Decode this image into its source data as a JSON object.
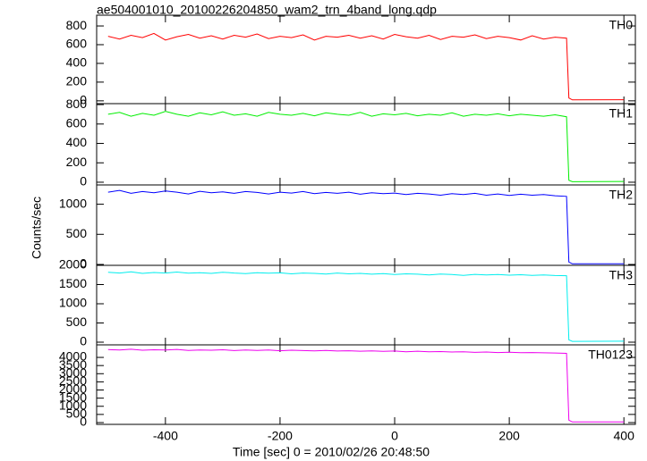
{
  "chart_data": [
    {
      "type": "line",
      "title": "ae504001010_20100226204850_wam2_trn_4band_long.qdp",
      "name": "TH0",
      "color": "#ff0000",
      "x": [
        -500,
        -480,
        -460,
        -440,
        -420,
        -400,
        -380,
        -360,
        -340,
        -320,
        -300,
        -280,
        -260,
        -240,
        -220,
        -200,
        -180,
        -160,
        -140,
        -120,
        -100,
        -80,
        -60,
        -40,
        -20,
        0,
        20,
        40,
        60,
        80,
        100,
        120,
        140,
        160,
        180,
        200,
        220,
        240,
        260,
        280,
        300,
        304,
        310,
        400
      ],
      "values": [
        690,
        660,
        700,
        675,
        720,
        650,
        685,
        710,
        670,
        695,
        660,
        700,
        680,
        715,
        665,
        690,
        675,
        705,
        650,
        690,
        680,
        700,
        670,
        695,
        660,
        710,
        685,
        670,
        700,
        655,
        690,
        680,
        705,
        665,
        690,
        675,
        650,
        695,
        660,
        680,
        670,
        30,
        10,
        12
      ],
      "xlim": [
        -520,
        420
      ],
      "ylim": [
        -30,
        915
      ],
      "yticks": [
        0,
        200,
        400,
        600,
        800
      ]
    },
    {
      "type": "line",
      "name": "TH1",
      "color": "#00ee00",
      "x": [
        -500,
        -480,
        -460,
        -440,
        -420,
        -400,
        -380,
        -360,
        -340,
        -320,
        -300,
        -280,
        -260,
        -240,
        -220,
        -200,
        -180,
        -160,
        -140,
        -120,
        -100,
        -80,
        -60,
        -40,
        -20,
        0,
        20,
        40,
        60,
        80,
        100,
        120,
        140,
        160,
        180,
        200,
        220,
        240,
        260,
        280,
        300,
        304,
        310,
        400
      ],
      "values": [
        700,
        720,
        680,
        710,
        690,
        730,
        700,
        680,
        715,
        695,
        725,
        690,
        705,
        680,
        720,
        700,
        690,
        710,
        685,
        715,
        700,
        690,
        720,
        680,
        705,
        695,
        710,
        685,
        700,
        690,
        715,
        680,
        700,
        690,
        705,
        685,
        700,
        690,
        680,
        695,
        675,
        20,
        5,
        8
      ],
      "xlim": [
        -520,
        420
      ],
      "ylim": [
        -28,
        810
      ],
      "yticks": [
        0,
        200,
        400,
        600,
        800
      ]
    },
    {
      "type": "line",
      "name": "TH2",
      "color": "#0000ff",
      "ylabel": "Counts/sec",
      "x": [
        -500,
        -480,
        -460,
        -440,
        -420,
        -400,
        -380,
        -360,
        -340,
        -320,
        -300,
        -280,
        -260,
        -240,
        -220,
        -200,
        -180,
        -160,
        -140,
        -120,
        -100,
        -80,
        -60,
        -40,
        -20,
        0,
        20,
        40,
        60,
        80,
        100,
        120,
        140,
        160,
        180,
        200,
        220,
        240,
        260,
        280,
        300,
        304,
        310,
        400
      ],
      "values": [
        1200,
        1230,
        1180,
        1210,
        1190,
        1220,
        1200,
        1170,
        1215,
        1190,
        1205,
        1180,
        1210,
        1195,
        1170,
        1200,
        1185,
        1210,
        1175,
        1195,
        1180,
        1200,
        1165,
        1190,
        1175,
        1185,
        1160,
        1180,
        1170,
        1150,
        1175,
        1160,
        1180,
        1150,
        1170,
        1145,
        1165,
        1150,
        1160,
        1140,
        1130,
        40,
        10,
        12
      ],
      "xlim": [
        -520,
        420
      ],
      "ylim": [
        -15,
        1320
      ],
      "yticks": [
        0,
        500,
        1000
      ]
    },
    {
      "type": "line",
      "name": "TH3",
      "color": "#00eeee",
      "x": [
        -500,
        -480,
        -460,
        -440,
        -420,
        -400,
        -380,
        -360,
        -340,
        -320,
        -300,
        -280,
        -260,
        -240,
        -220,
        -200,
        -180,
        -160,
        -140,
        -120,
        -100,
        -80,
        -60,
        -40,
        -20,
        0,
        20,
        40,
        60,
        80,
        100,
        120,
        140,
        160,
        180,
        200,
        220,
        240,
        260,
        280,
        300,
        304,
        310,
        400
      ],
      "values": [
        1820,
        1800,
        1830,
        1790,
        1815,
        1800,
        1825,
        1795,
        1810,
        1790,
        1820,
        1800,
        1785,
        1810,
        1795,
        1805,
        1780,
        1800,
        1790,
        1775,
        1800,
        1780,
        1790,
        1770,
        1785,
        1760,
        1780,
        1770,
        1750,
        1775,
        1760,
        1740,
        1765,
        1750,
        1760,
        1745,
        1755,
        1740,
        1750,
        1735,
        1730,
        60,
        20,
        25
      ],
      "xlim": [
        -520,
        420
      ],
      "ylim": [
        -70,
        2000
      ],
      "yticks": [
        0,
        500,
        1000,
        1500,
        2000
      ]
    },
    {
      "type": "line",
      "name": "TH0123",
      "color": "#ee00ee",
      "xlabel": "Time [sec] 0 = 2010/02/26 20:48:50",
      "x": [
        -500,
        -480,
        -460,
        -440,
        -420,
        -400,
        -380,
        -360,
        -340,
        -320,
        -300,
        -280,
        -260,
        -240,
        -220,
        -200,
        -180,
        -160,
        -140,
        -120,
        -100,
        -80,
        -60,
        -40,
        -20,
        0,
        20,
        40,
        60,
        80,
        100,
        120,
        140,
        160,
        180,
        200,
        220,
        240,
        260,
        280,
        300,
        304,
        310,
        400
      ],
      "values": [
        4480,
        4450,
        4500,
        4440,
        4470,
        4460,
        4490,
        4430,
        4460,
        4440,
        4470,
        4420,
        4450,
        4430,
        4460,
        4410,
        4440,
        4420,
        4400,
        4430,
        4390,
        4410,
        4380,
        4400,
        4370,
        4390,
        4350,
        4380,
        4340,
        4360,
        4330,
        4350,
        4310,
        4330,
        4300,
        4320,
        4290,
        4300,
        4280,
        4270,
        4250,
        150,
        40,
        45
      ],
      "xlim": [
        -520,
        420
      ],
      "ylim": [
        -110,
        4770
      ],
      "yticks": [
        0,
        500,
        1000,
        1500,
        2000,
        2500,
        3000,
        3500,
        4000
      ],
      "xticks": [
        -400,
        -200,
        0,
        200,
        400
      ]
    }
  ]
}
